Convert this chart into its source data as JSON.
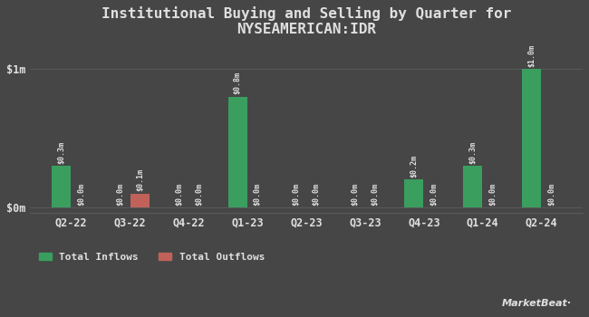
{
  "title_line1": "Institutional Buying and Selling by Quarter for",
  "title_line2": "NYSEAMERICAN:IDR",
  "quarters": [
    "Q2-22",
    "Q3-22",
    "Q4-22",
    "Q1-23",
    "Q2-23",
    "Q3-23",
    "Q4-23",
    "Q1-24",
    "Q2-24"
  ],
  "inflows": [
    0.3,
    0.0,
    0.0,
    0.8,
    0.0,
    0.0,
    0.2,
    0.3,
    1.0
  ],
  "outflows": [
    0.0,
    0.1,
    0.0,
    0.0,
    0.0,
    0.0,
    0.0,
    0.0,
    0.0
  ],
  "inflow_labels": [
    "$0.3m",
    "$0.0m",
    "$0.0m",
    "$0.8m",
    "$0.0m",
    "$0.0m",
    "$0.2m",
    "$0.3m",
    "$1.0m"
  ],
  "outflow_labels": [
    "$0.0m",
    "$0.1m",
    "$0.0m",
    "$0.0m",
    "$0.0m",
    "$0.0m",
    "$0.0m",
    "$0.0m",
    "$0.0m"
  ],
  "inflow_color": "#3a9e5f",
  "outflow_color": "#c0625a",
  "background_color": "#464646",
  "text_color": "#e0e0e0",
  "grid_color": "#5a5a5a",
  "yticks": [
    0,
    1
  ],
  "ytick_labels": [
    "$0m",
    "$1m"
  ],
  "ylim": [
    -0.04,
    1.18
  ],
  "bar_width": 0.32,
  "bar_gap": 0.02,
  "legend_inflow": "Total Inflows",
  "legend_outflow": "Total Outflows",
  "title_fontsize": 11.5,
  "label_fontsize": 6.0,
  "axis_fontsize": 8.5,
  "legend_fontsize": 8,
  "marketbeat_fontsize": 8
}
